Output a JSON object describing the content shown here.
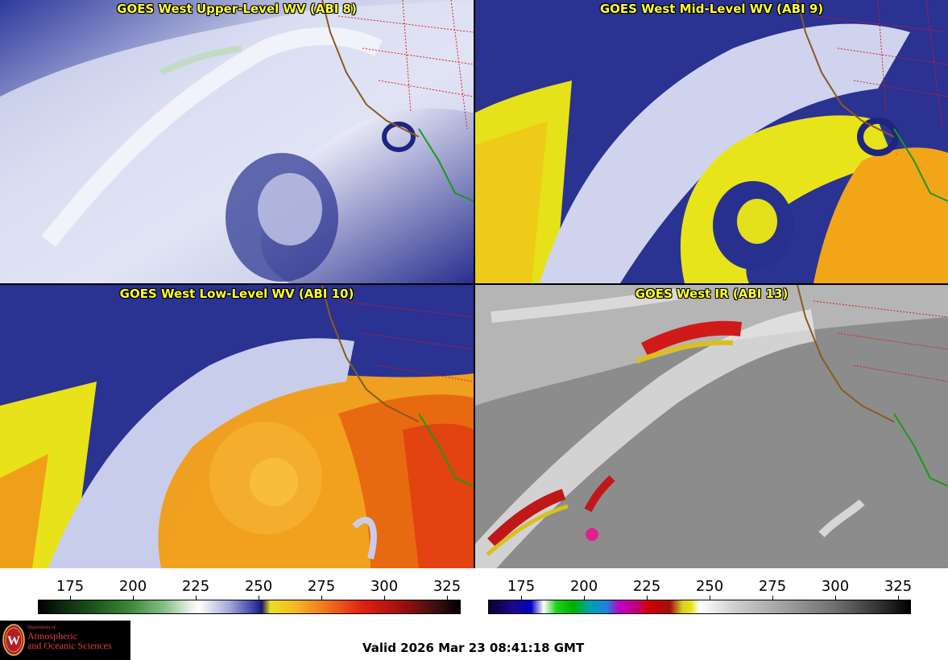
{
  "panels": [
    {
      "title": "GOES West Upper-Level WV (ABI 8)"
    },
    {
      "title": "GOES West Mid-Level WV (ABI 9)"
    },
    {
      "title": "GOES West Low-Level WV (ABI 10)"
    },
    {
      "title": "GOES West IR (ABI 13)"
    }
  ],
  "colorbars": {
    "wv": {
      "ticks": [
        "175",
        "200",
        "225",
        "250",
        "275",
        "300",
        "325"
      ]
    },
    "ir": {
      "ticks": [
        "175",
        "200",
        "225",
        "250",
        "275",
        "300",
        "325"
      ]
    }
  },
  "footer": {
    "valid": "Valid 2026 Mar 23 08:41:18 GMT",
    "logo_dept": "Department of",
    "logo_line1": "Atmospheric",
    "logo_line2": "and Oceanic Sciences"
  }
}
